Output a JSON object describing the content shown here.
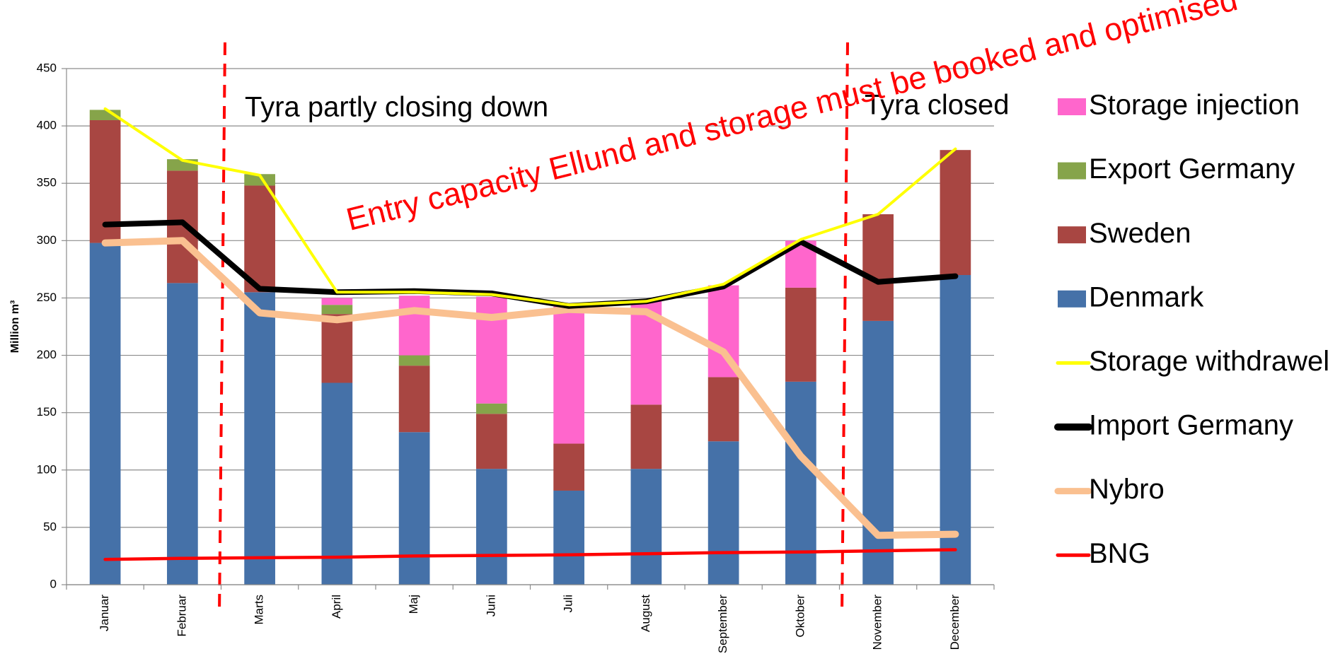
{
  "chart_data": {
    "type": "bar",
    "y_label": "Million m³",
    "categories": [
      "Januar",
      "Februar",
      "Marts",
      "April",
      "Maj",
      "Juni",
      "Juli",
      "August",
      "September",
      "Oktober",
      "November",
      "December"
    ],
    "ylim": [
      0,
      450
    ],
    "yticks": [
      0,
      50,
      100,
      150,
      200,
      250,
      300,
      350,
      400,
      450
    ],
    "grid": true,
    "annotations": [
      "Tyra partly closing down",
      "Tyra closed",
      "Entry capacity Ellund and storage must be booked and optimised"
    ],
    "series": [
      {
        "name": "Storage injection",
        "type": "bar",
        "color": "#ff66cc",
        "values": [
          0,
          0,
          0,
          6,
          52,
          93,
          122,
          91,
          80,
          41,
          0,
          0
        ]
      },
      {
        "name": "Export Germany",
        "type": "bar",
        "color": "#86a44a",
        "values": [
          9,
          10,
          10,
          8,
          9,
          9,
          0,
          0,
          0,
          0,
          0,
          0
        ]
      },
      {
        "name": "Sweden",
        "type": "bar",
        "color": "#a84642",
        "values": [
          107,
          98,
          93,
          60,
          58,
          48,
          41,
          56,
          56,
          82,
          93,
          109
        ]
      },
      {
        "name": "Denmark",
        "type": "bar",
        "color": "#4571a8",
        "values": [
          298,
          263,
          255,
          176,
          133,
          101,
          82,
          101,
          125,
          177,
          230,
          270
        ]
      },
      {
        "name": "Storage withdrawel",
        "type": "line",
        "color": "#ffff00",
        "values": [
          415,
          370,
          357,
          255,
          255,
          253,
          244,
          247,
          262,
          301,
          323,
          380
        ]
      },
      {
        "name": "Import Germany",
        "type": "line",
        "color": "#000000",
        "values": [
          314,
          316,
          258,
          255,
          256,
          254,
          243,
          247,
          260,
          299,
          264,
          269
        ]
      },
      {
        "name": "Nybro",
        "type": "line",
        "color": "#fac090",
        "values": [
          298,
          300,
          237,
          231,
          239,
          233,
          240,
          238,
          203,
          112,
          43,
          44
        ]
      },
      {
        "name": "BNG",
        "type": "line",
        "color": "#ff0000",
        "values": [
          22,
          23,
          23.5,
          24,
          25,
          25.5,
          26,
          27,
          28,
          28.5,
          29.5,
          30.5
        ]
      }
    ]
  }
}
